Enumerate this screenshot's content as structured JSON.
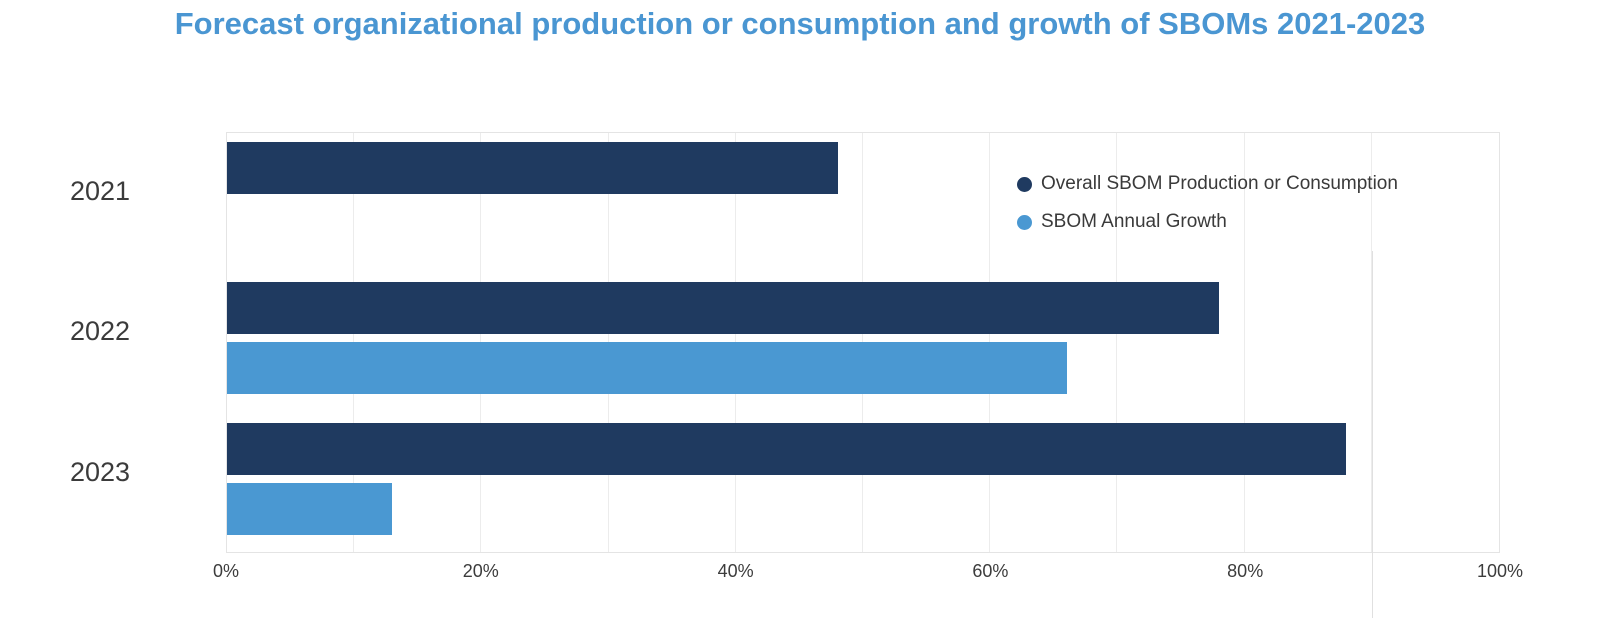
{
  "title": "Forecast organizational production or consumption and growth of SBOMs 2021-2023",
  "colors": {
    "title_blue": "#4A96D2",
    "series_navy": "#1F3A60",
    "series_blue": "#4A98D2",
    "gridline": "#ececec",
    "plot_border": "#e4e4e4",
    "axis_text": "#3c3c3c"
  },
  "chart_data": {
    "type": "bar",
    "orientation": "horizontal",
    "title": "Forecast organizational production or consumption and growth of SBOMs 2021-2023",
    "categories": [
      "2021",
      "2022",
      "2023"
    ],
    "series": [
      {
        "name": "Overall SBOM Production or Consumption",
        "color": "#1F3A60",
        "values": [
          48,
          78,
          88
        ]
      },
      {
        "name": "SBOM Annual Growth",
        "color": "#4A98D2",
        "values": [
          null,
          66,
          13
        ]
      }
    ],
    "x_tick_labels": [
      "0%",
      "20%",
      "40%",
      "60%",
      "80%",
      "100%"
    ],
    "xlim": [
      0,
      100
    ],
    "grid": "vertical lines every 10%",
    "legend_position": "inside-top-right",
    "unit": "percent"
  }
}
